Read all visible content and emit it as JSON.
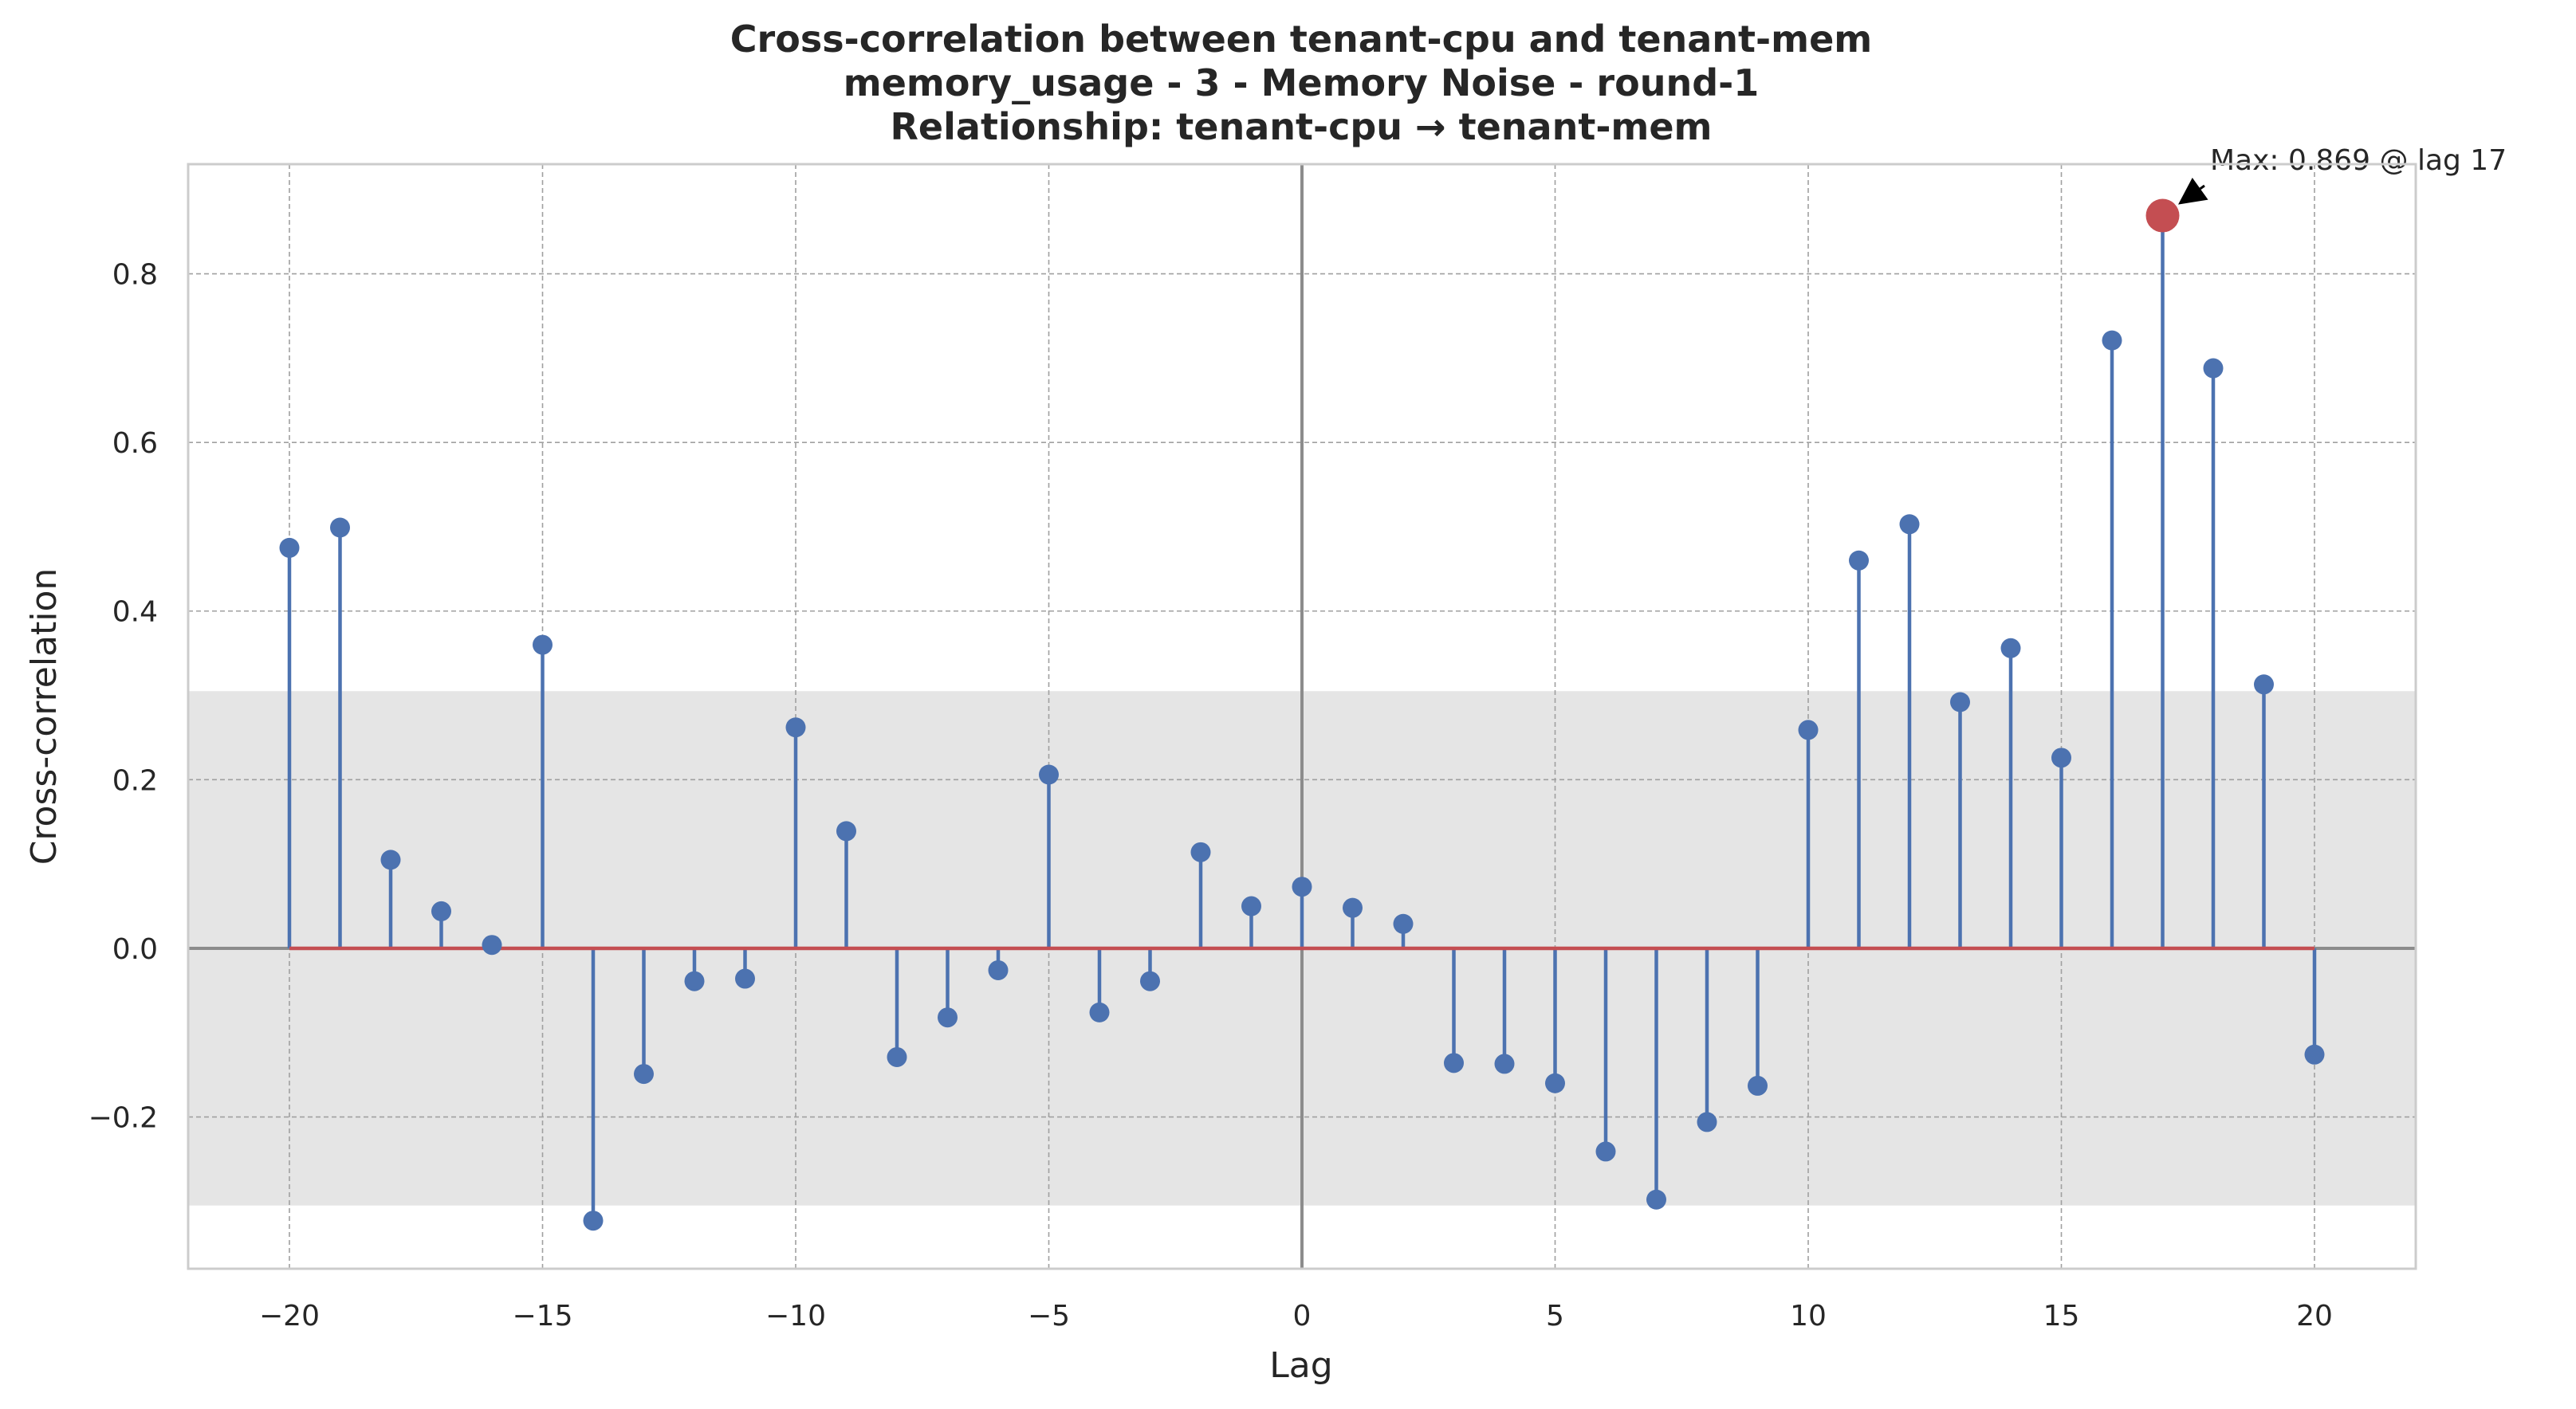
{
  "chart_data": {
    "type": "stem",
    "title_lines": [
      "Cross-correlation between tenant-cpu and tenant-mem",
      "memory_usage - 3 - Memory Noise - round-1",
      "Relationship: tenant-cpu → tenant-mem"
    ],
    "xlabel": "Lag",
    "ylabel": "Cross-correlation",
    "xlim": [
      -22,
      22
    ],
    "ylim": [
      -0.38,
      0.93
    ],
    "x_ticks": [
      -20,
      -15,
      -10,
      -5,
      0,
      5,
      10,
      15,
      20
    ],
    "x_tick_labels": [
      "−20",
      "−15",
      "−10",
      "−5",
      "0",
      "5",
      "10",
      "15",
      "20"
    ],
    "y_ticks": [
      -0.2,
      0.0,
      0.2,
      0.4,
      0.6,
      0.8
    ],
    "y_tick_labels": [
      "−0.2",
      "0.0",
      "0.2",
      "0.4",
      "0.6",
      "0.8"
    ],
    "grid": true,
    "confidence_band": [
      -0.305,
      0.305
    ],
    "lags": [
      -20,
      -19,
      -18,
      -17,
      -16,
      -15,
      -14,
      -13,
      -12,
      -11,
      -10,
      -9,
      -8,
      -7,
      -6,
      -5,
      -4,
      -3,
      -2,
      -1,
      0,
      1,
      2,
      3,
      4,
      5,
      6,
      7,
      8,
      9,
      10,
      11,
      12,
      13,
      14,
      15,
      16,
      17,
      18,
      19,
      20
    ],
    "values": [
      0.475,
      0.499,
      0.105,
      0.044,
      0.004,
      0.36,
      -0.323,
      -0.149,
      -0.039,
      -0.036,
      0.262,
      0.139,
      -0.129,
      -0.082,
      -0.026,
      0.206,
      -0.076,
      -0.039,
      0.114,
      0.05,
      0.073,
      0.048,
      0.029,
      -0.136,
      -0.137,
      -0.16,
      -0.241,
      -0.298,
      -0.206,
      -0.163,
      0.259,
      0.46,
      0.503,
      0.292,
      0.356,
      0.226,
      0.721,
      0.869,
      0.688,
      0.313,
      -0.126
    ],
    "max_point": {
      "lag": 17,
      "value": 0.869
    },
    "annotation": "Max: 0.869 @ lag 17",
    "colors": {
      "stem": "#4c72b0",
      "marker": "#4c72b0",
      "max_marker": "#c44e52",
      "baseline": "#c44e52",
      "band": "#e5e5e5",
      "grid": "#a0a0a0",
      "zero_lines": "#8c8c8c",
      "frame": "#cccccc"
    }
  }
}
